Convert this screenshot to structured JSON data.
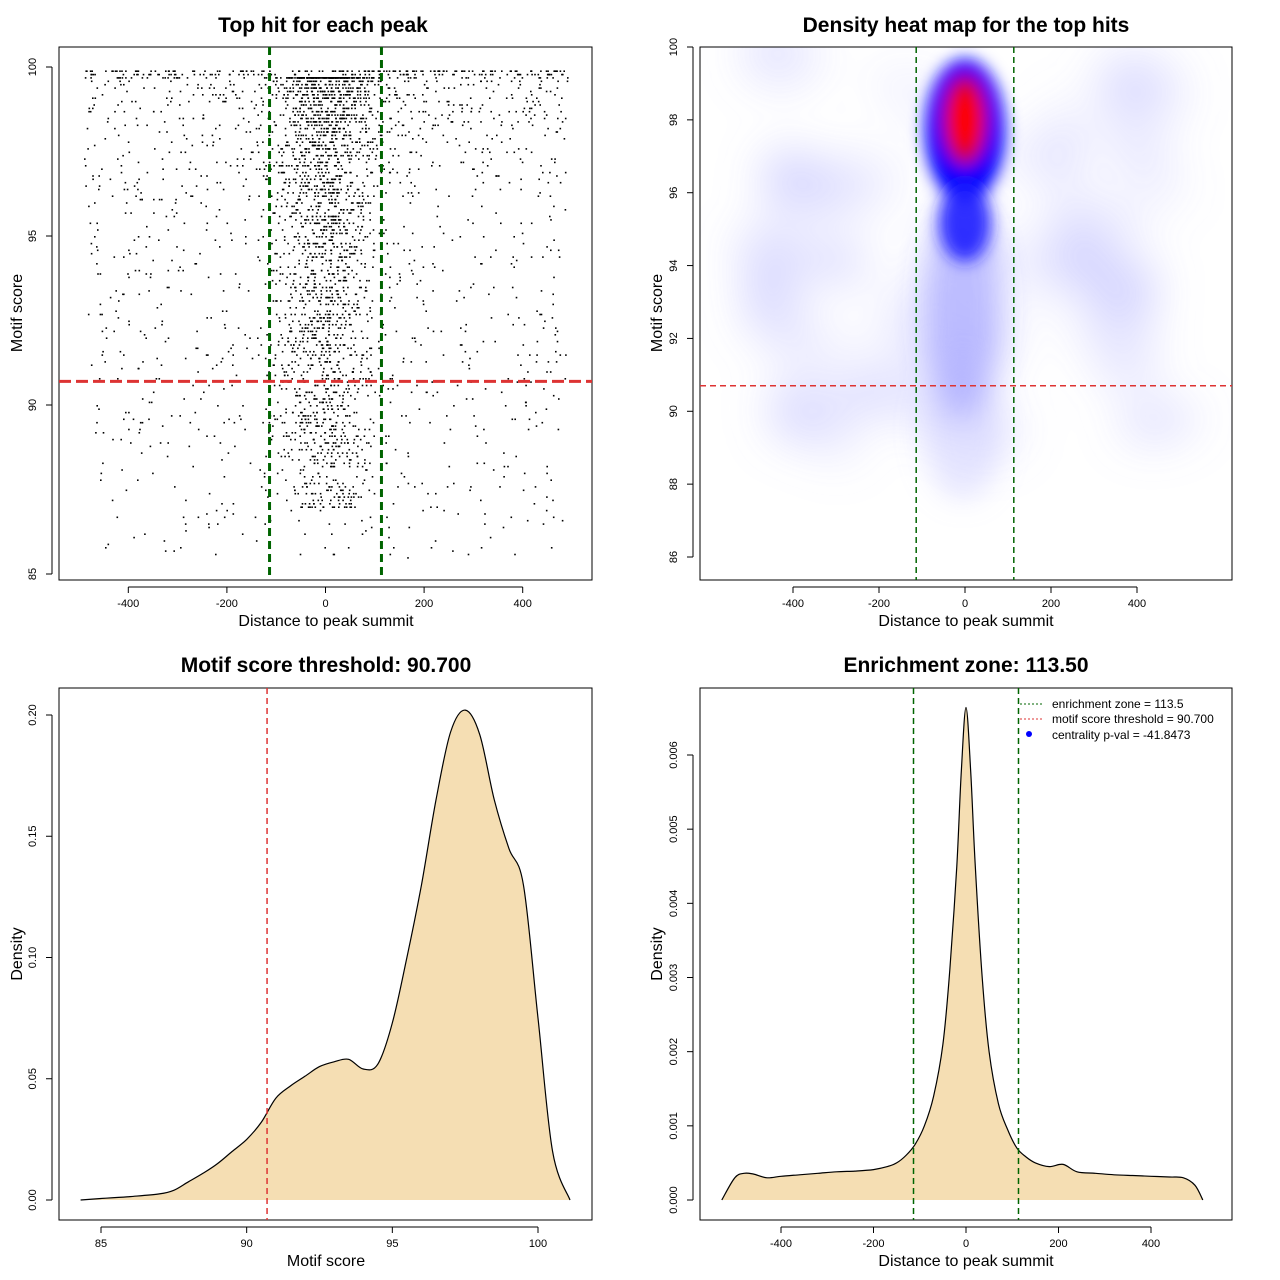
{
  "chart_data": [
    {
      "type": "scatter",
      "title": "Top hit for each peak",
      "xlabel": "Distance to peak summit",
      "ylabel": "Motif score",
      "xlim": [
        -500,
        500
      ],
      "ylim": [
        85,
        100
      ],
      "x_ticks": [
        "-400",
        "-200",
        "0",
        "200",
        "400"
      ],
      "y_ticks": [
        "85",
        "90",
        "95",
        "100"
      ],
      "grid": false,
      "threshold_line": {
        "y": 90.7,
        "color": "#dd3333",
        "style": "dashed"
      },
      "zone_lines": {
        "x": [
          -113.5,
          113.5
        ],
        "color": "#006400",
        "style": "dashed"
      },
      "points_description_note": "",
      "point_distribution": {
        "background_x_range": [
          -490,
          490
        ],
        "background_y_range": [
          85.5,
          99.9
        ],
        "central_x_sd": 45,
        "central_y_range": [
          87,
          99.7
        ],
        "mode_score": 97.5
      }
    },
    {
      "type": "heatmap",
      "title": "Density heat map for the top hits",
      "xlabel": "Distance to peak summit",
      "ylabel": "Motif score",
      "xlim": [
        -500,
        500
      ],
      "ylim": [
        85.4,
        100
      ],
      "x_ticks": [
        "-400",
        "-200",
        "0",
        "200",
        "400"
      ],
      "y_ticks": [
        "86",
        "88",
        "90",
        "92",
        "94",
        "96",
        "98",
        "100"
      ],
      "colors": [
        "#ffffff",
        "#0000ff",
        "#ff0000"
      ],
      "peak": {
        "x": 0,
        "y": 98
      },
      "threshold_line": {
        "y": 90.7,
        "color": "#dd3333",
        "style": "dashed"
      },
      "zone_lines": {
        "x": [
          -113.5,
          113.5
        ],
        "color": "#006400",
        "style": "dashed"
      }
    },
    {
      "type": "area",
      "title": "Motif score threshold: 90.700",
      "xlabel": "Motif score",
      "ylabel": "Density",
      "xlim": [
        84.3,
        101.1
      ],
      "ylim": [
        0,
        0.21
      ],
      "x_ticks": [
        "85",
        "90",
        "95",
        "100"
      ],
      "y_ticks": [
        "0.00",
        "0.05",
        "0.10",
        "0.15",
        "0.20"
      ],
      "fill": "#f5deb3",
      "threshold_line": {
        "x": 90.7,
        "color": "#dd3333",
        "style": "dashed"
      },
      "x": [
        84.3,
        85,
        86,
        87,
        87.5,
        88,
        88.5,
        89,
        89.5,
        90,
        90.5,
        91,
        91.5,
        92,
        92.5,
        93,
        93.5,
        94,
        94.5,
        95,
        95.5,
        96,
        96.5,
        97,
        97.5,
        98,
        98.5,
        99,
        99.5,
        100,
        100.5,
        101.1
      ],
      "y": [
        0.0,
        0.0006,
        0.0014,
        0.0025,
        0.004,
        0.0075,
        0.011,
        0.015,
        0.02,
        0.025,
        0.032,
        0.042,
        0.047,
        0.051,
        0.055,
        0.057,
        0.058,
        0.054,
        0.056,
        0.073,
        0.1,
        0.13,
        0.165,
        0.193,
        0.202,
        0.192,
        0.165,
        0.145,
        0.13,
        0.075,
        0.02,
        0.0
      ]
    },
    {
      "type": "area",
      "title": "Enrichment zone: 113.50",
      "xlabel": "Distance to peak summit",
      "ylabel": "Density",
      "xlim": [
        -525,
        525
      ],
      "ylim": [
        0,
        0.0067
      ],
      "x_ticks": [
        "-400",
        "-200",
        "0",
        "200",
        "400"
      ],
      "y_ticks": [
        "0.000",
        "0.001",
        "0.002",
        "0.003",
        "0.004",
        "0.005",
        "0.006"
      ],
      "fill": "#f5deb3",
      "zone_lines": {
        "x": [
          -113.5,
          113.5
        ],
        "color": "#006400",
        "style": "dashed"
      },
      "x": [
        -528,
        -500,
        -480,
        -460,
        -430,
        -400,
        -360,
        -320,
        -280,
        -240,
        -200,
        -170,
        -150,
        -130,
        -110,
        -90,
        -70,
        -50,
        -35,
        -20,
        -10,
        0,
        10,
        20,
        35,
        50,
        70,
        90,
        110,
        130,
        150,
        180,
        210,
        240,
        280,
        320,
        360,
        400,
        440,
        470,
        495,
        512
      ],
      "y": [
        0.0,
        0.0003,
        0.00036,
        0.00035,
        0.0003,
        0.00032,
        0.00034,
        0.00036,
        0.00038,
        0.00039,
        0.00041,
        0.00045,
        0.0005,
        0.0006,
        0.00075,
        0.001,
        0.0014,
        0.0021,
        0.0031,
        0.0045,
        0.0058,
        0.00664,
        0.0058,
        0.0045,
        0.003,
        0.002,
        0.0013,
        0.00095,
        0.0007,
        0.00058,
        0.0005,
        0.00045,
        0.00048,
        0.00038,
        0.00036,
        0.00034,
        0.00033,
        0.00032,
        0.00031,
        0.0003,
        0.0002,
        0.0
      ]
    }
  ],
  "legend": {
    "items": [
      {
        "label": "enrichment zone = 113.5",
        "color": "#006400",
        "kind": "dotted-line"
      },
      {
        "label": "motif score threshold = 90.700",
        "color": "#dd3333",
        "kind": "dotted-line"
      },
      {
        "label": "centrality p-val = -41.8473",
        "color": "#0000ff",
        "kind": "point"
      }
    ]
  }
}
